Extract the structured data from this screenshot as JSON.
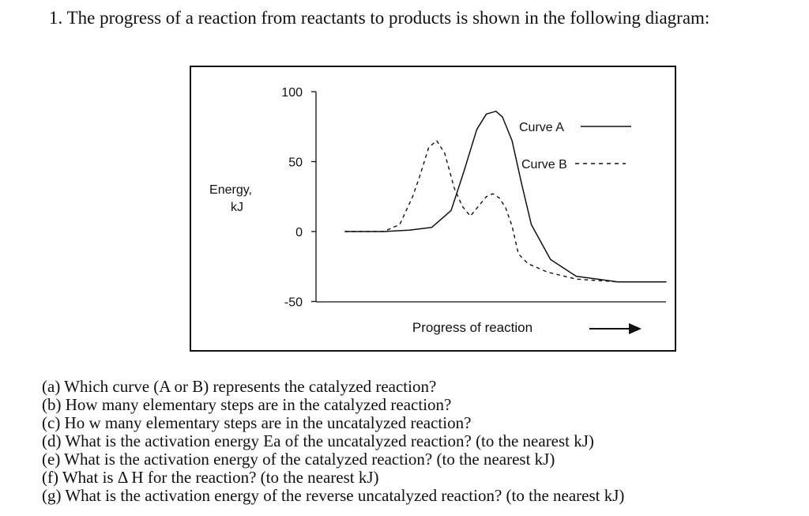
{
  "question": {
    "number": "1.",
    "text": "The progress of a reaction from reactants to products is shown in the following diagram:"
  },
  "chart_data": {
    "type": "line",
    "ylabel": "Energy,\nkJ",
    "ylabel_lines": [
      "Energy,",
      "kJ"
    ],
    "xlabel": "Progress of reaction",
    "yticks": [
      100,
      50,
      0,
      -50
    ],
    "ylim": [
      -50,
      100
    ],
    "series": [
      {
        "name": "Curve A",
        "style": "solid",
        "x": [
          0,
          0.12,
          0.2,
          0.27,
          0.33,
          0.37,
          0.41,
          0.44,
          0.47,
          0.49,
          0.52,
          0.55,
          0.58,
          0.64,
          0.72,
          0.85,
          1.0
        ],
        "y": [
          0,
          0,
          1,
          3,
          15,
          43,
          73,
          84,
          86,
          82,
          65,
          34,
          5,
          -20,
          -32,
          -36,
          -36
        ]
      },
      {
        "name": "Curve B",
        "style": "dashed",
        "x": [
          0,
          0.12,
          0.17,
          0.21,
          0.23,
          0.26,
          0.285,
          0.31,
          0.34,
          0.365,
          0.39,
          0.415,
          0.44,
          0.46,
          0.48,
          0.5,
          0.52,
          0.54,
          0.57,
          0.63,
          0.72,
          0.85,
          1.0
        ],
        "y": [
          0,
          0,
          5,
          25,
          38,
          60,
          65,
          56,
          31,
          18,
          11,
          18,
          25,
          27,
          24,
          17,
          4,
          -16,
          -23,
          -29,
          -34,
          -36,
          -36
        ]
      }
    ]
  },
  "sub_questions": [
    "(a) Which curve (A or B) represents the catalyzed reaction?",
    "(b) How many elementary steps are in the catalyzed reaction?",
    "(c) Ho w many elementary steps are in the uncatalyzed reaction?",
    "(d) What is the activation energy Ea of the uncatalyzed reaction? (to the nearest kJ)",
    "(e) What is the activation energy of the catalyzed reaction? (to the nearest kJ)",
    "(f) What is Δ H for the reaction? (to the nearest kJ)",
    "(g) What is the activation energy of the reverse uncatalyzed reaction? (to the nearest kJ)"
  ]
}
